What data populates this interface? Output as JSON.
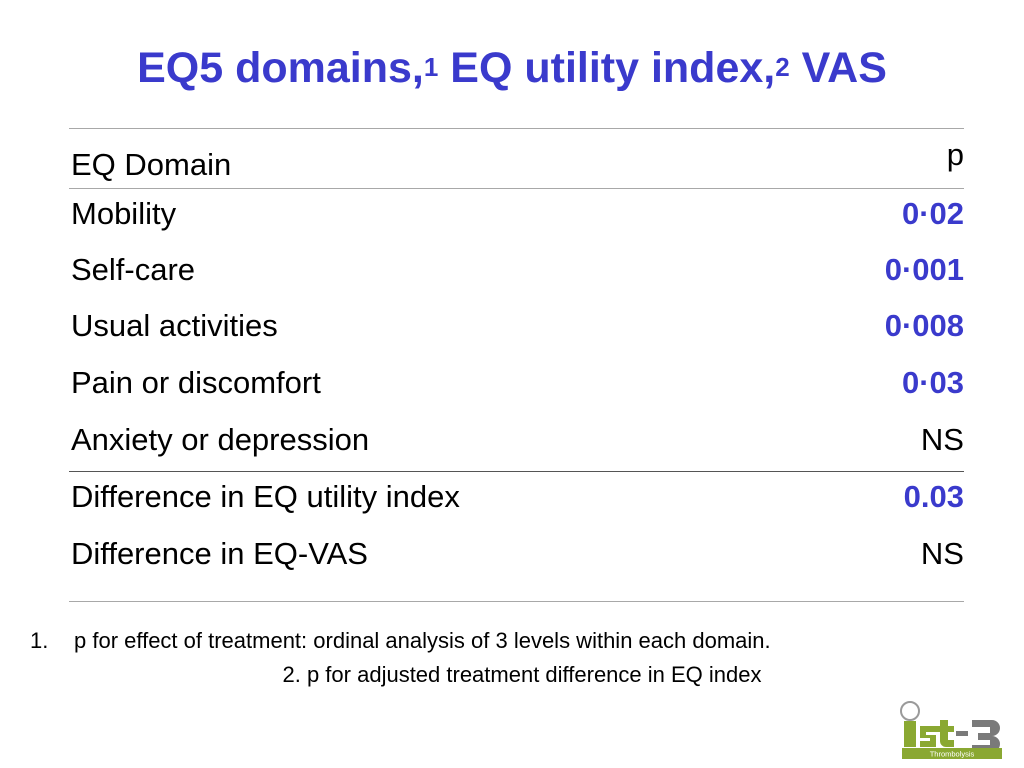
{
  "title": {
    "part1": "EQ5 domains,",
    "sup1": "1",
    "part2": " EQ utility index,",
    "sup2": "2",
    "part3": " VAS"
  },
  "table": {
    "header": {
      "label": "EQ Domain",
      "p": "p"
    },
    "rows": [
      {
        "label": "Mobility",
        "p": "0·02",
        "significant": true
      },
      {
        "label": "Self-care",
        "p": "0·001",
        "significant": true
      },
      {
        "label": "Usual activities",
        "p": "0·008",
        "significant": true
      },
      {
        "label": "Pain or discomfort",
        "p": "0·03",
        "significant": true
      },
      {
        "label": "Anxiety or depression",
        "p": "NS",
        "significant": false
      },
      {
        "label": "Difference in EQ utility index",
        "p": "0.03",
        "significant": true
      },
      {
        "label": "Difference in EQ-VAS",
        "p": "NS",
        "significant": false
      }
    ]
  },
  "footnotes": {
    "fn1_number": "1.",
    "fn1_text": "p for effect of treatment: ordinal analysis of 3 levels within each domain.",
    "fn2_text": "2. p for adjusted treatment difference in  EQ index"
  },
  "logo": {
    "name": "ist-3-logo",
    "text": "ist-3",
    "subtitle": "Thrombolysis"
  },
  "colors": {
    "accent": "#3a3acc",
    "logo_green": "#8aa832"
  }
}
